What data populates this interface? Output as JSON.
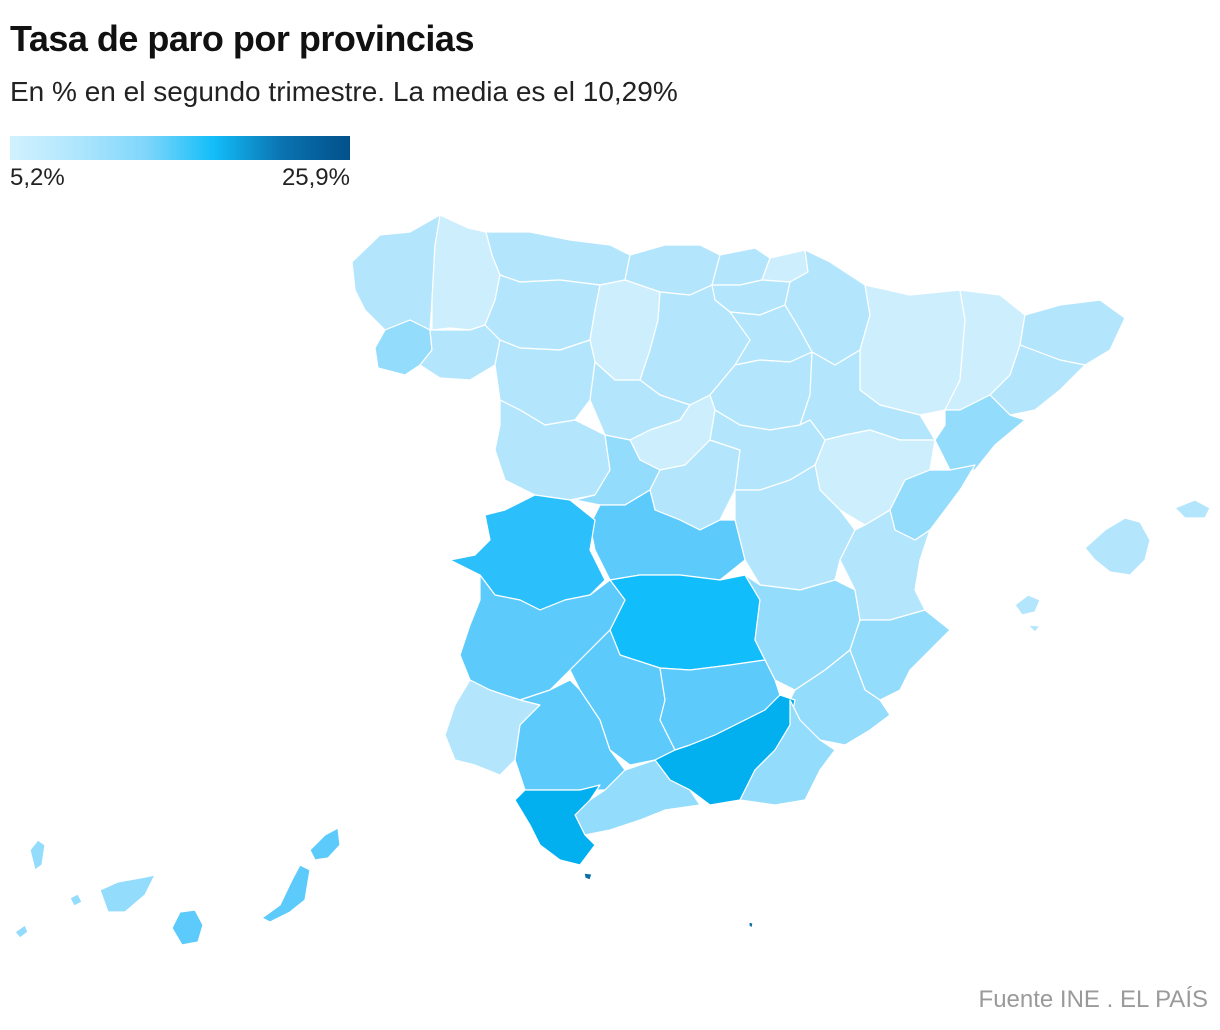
{
  "header": {
    "title": "Tasa de paro por provincias",
    "subtitle": "En % en el segundo trimestre. La media es el 10,29%"
  },
  "legend": {
    "min_label": "5,2%",
    "max_label": "25,9%",
    "min_value": 5.2,
    "max_value": 25.9,
    "colors": [
      "#d2f1ff",
      "#aee6fd",
      "#7fd6fb",
      "#12bdf9",
      "#0a73b0",
      "#02508a"
    ]
  },
  "map": {
    "region_colors": {
      "lightest": "#cdeffd",
      "light": "#b3e6fd",
      "light_mid": "#93dcfc",
      "mid": "#5ccbfc",
      "mid_dark": "#2bbffb",
      "bright": "#11befb",
      "strong": "#02b0f0",
      "darkest": "#0a6fa5"
    }
  },
  "footer": {
    "source": "Fuente INE . EL PAÍS"
  }
}
